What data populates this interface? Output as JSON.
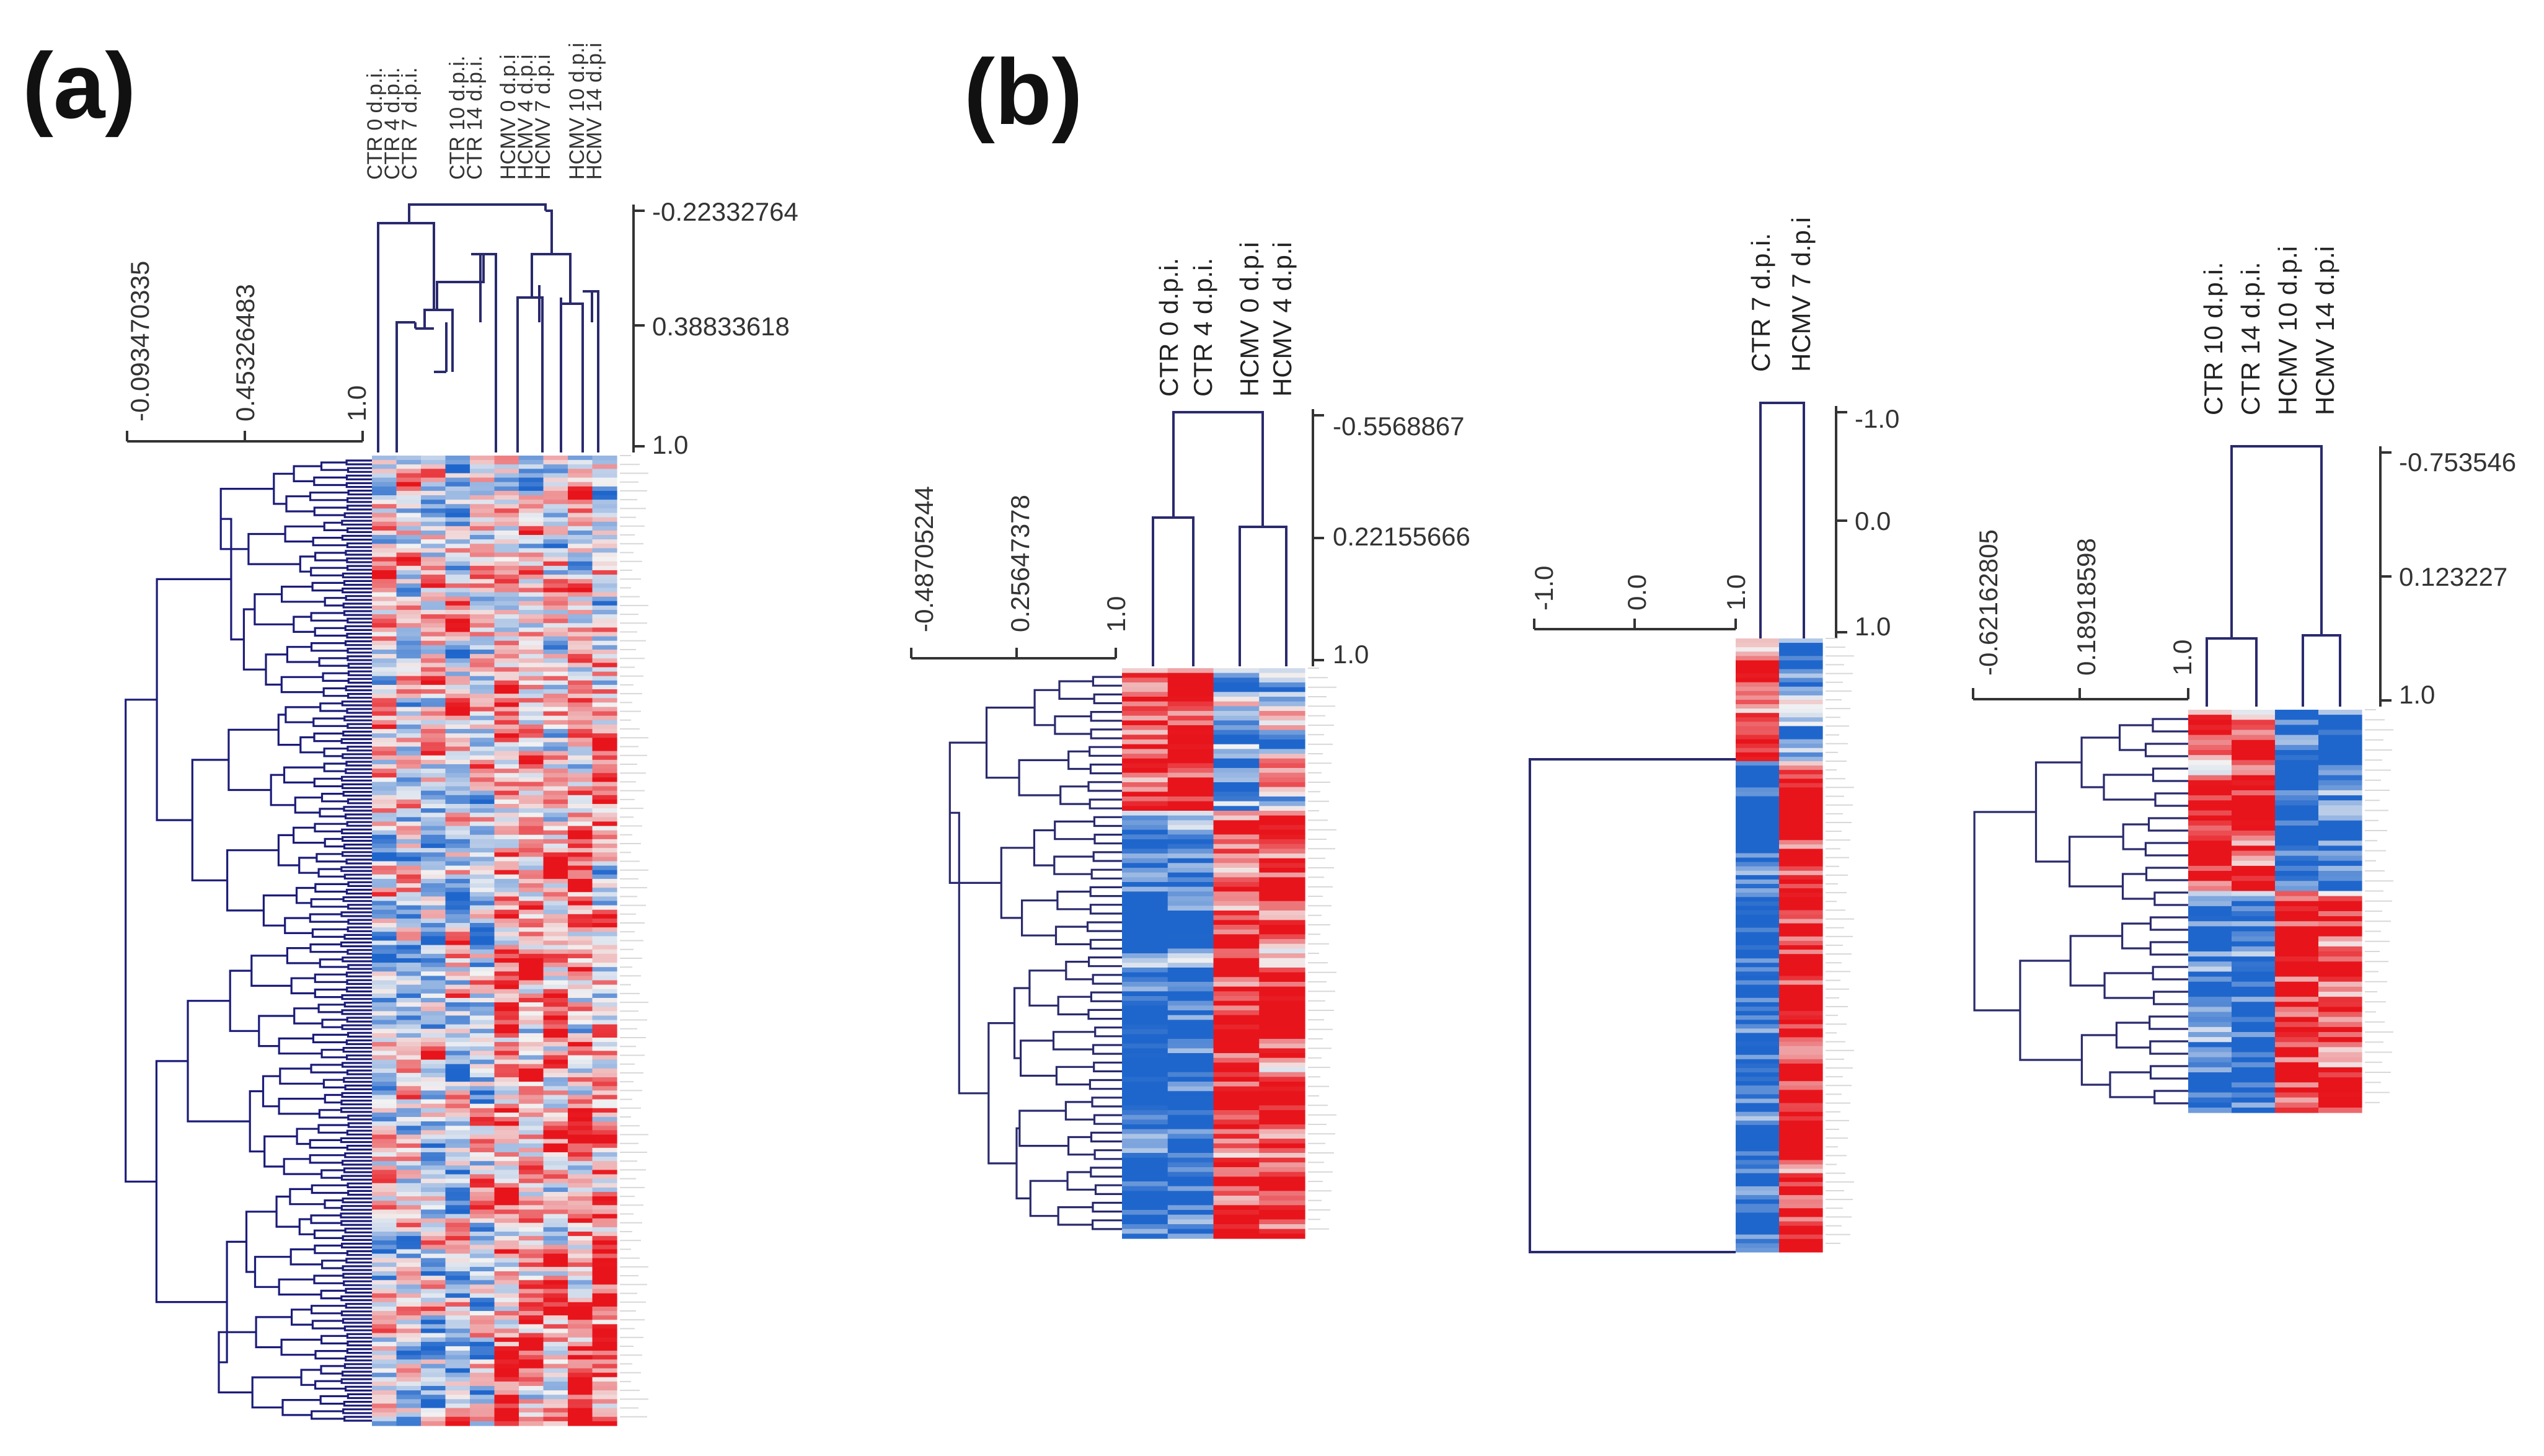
{
  "figure": {
    "panel_labels": [
      "(a)",
      "(b)"
    ],
    "colors": {
      "dendrogram_a": "#1c1c7a",
      "dendrogram_line": "#2a2a6e",
      "up": "#e8141b",
      "down": "#1f66cc",
      "neutral": "#f2f2f2",
      "axis": "#333333"
    }
  },
  "chart_data": [
    {
      "type": "heatmap",
      "panel": "(a)",
      "columns": [
        "CTR 0 d.p.i.",
        "CTR 4 d.p.i.",
        "CTR 7 d.p.i.",
        "CTR 10 d.p.i.",
        "CTR 14 d.p.i.",
        "HCMV 0 d.p.i",
        "HCMV 4 d.p.i",
        "HCMV 7 d.p.i",
        "HCMV 10 d.p.i",
        "HCMV 14 d.p.i"
      ],
      "col_dendrogram_scale": [
        "-0.22332764",
        "0.38833618",
        "1.0"
      ],
      "row_dendrogram_scale": [
        "-0.093470335",
        "0.45326483",
        "1.0"
      ],
      "rows": 220,
      "seed": 11
    },
    {
      "type": "heatmap",
      "panel": "(b)-1",
      "columns": [
        "CTR 0 d.p.i.",
        "CTR 4 d.p.i.",
        "HCMV 0 d.p.i",
        "HCMV 4 d.p.i"
      ],
      "col_dendrogram_scale": [
        "-0.5568867",
        "0.22155666",
        "1.0"
      ],
      "row_dendrogram_scale": [
        "-0.48705244",
        "0.25647378",
        "1.0"
      ],
      "rows": 120,
      "seed": 23
    },
    {
      "type": "heatmap",
      "panel": "(b)-2",
      "columns": [
        "CTR 7 d.p.i.",
        "HCMV 7 d.p.i"
      ],
      "col_dendrogram_scale": [
        "-1.0",
        "0.0",
        "1.0"
      ],
      "row_dendrogram_scale": [
        "-1.0",
        "0.0",
        "1.0"
      ],
      "rows": 140,
      "seed": 37
    },
    {
      "type": "heatmap",
      "panel": "(b)-3",
      "columns": [
        "CTR 10 d.p.i.",
        "CTR 14 d.p.i.",
        "HCMV 10 d.p.i",
        "HCMV 14 d.p.i"
      ],
      "col_dendrogram_scale": [
        "-0.753546",
        "0.123227",
        "1.0"
      ],
      "row_dendrogram_scale": [
        "-0.62162805",
        "0.18918598",
        "1.0"
      ],
      "rows": 80,
      "seed": 53
    }
  ]
}
